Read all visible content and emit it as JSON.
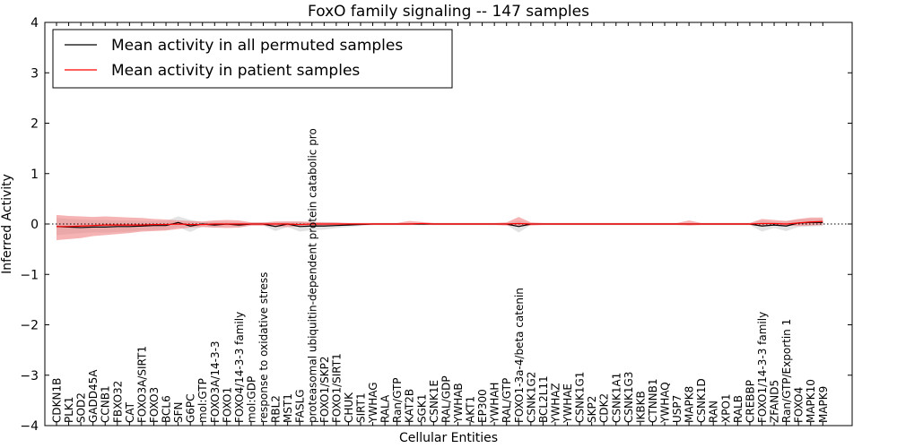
{
  "chart_data": {
    "type": "line",
    "title": "FoxO family signaling -- 147 samples",
    "xlabel": "Cellular Entities",
    "ylabel": "Inferred Activity",
    "ylim": [
      -4,
      4
    ],
    "yticks": [
      -4,
      -3,
      -2,
      -1,
      0,
      1,
      2,
      3,
      4
    ],
    "grid": false,
    "legend_position": "top-left",
    "reference_line": 0,
    "categories": [
      "CDKN1B",
      "PLK1",
      "SOD2",
      "GADD45A",
      "CCNB1",
      "FBXO32",
      "CAT",
      "FOXO3A/SIRT1",
      "FOXO3",
      "BCL6",
      "SFN",
      "G6PC",
      "mol:GTP",
      "FOXO3A/14-3-3",
      "FOXO1",
      "FOXO4/14-3-3 family",
      "mol:GDP",
      "response to oxidative stress",
      "RBL2",
      "MST1",
      "FASLG",
      "proteasomal ubiquitin-dependent protein catabolic pro",
      "FOXO1/SKP2",
      "FOXO1/SIRT1",
      "CHUK",
      "SIRT1",
      "YWHAG",
      "RALA",
      "Ran/GTP",
      "KAT2B",
      "SGK1",
      "CSNK1E",
      "RAL/GDP",
      "YWHAB",
      "AKT1",
      "EP300",
      "YWHAH",
      "RAL/GTP",
      "FOXO1-3a-4/beta catenin",
      "CSNK1G2",
      "BCL2L11",
      "YWHAZ",
      "YWHAE",
      "CSNK1G1",
      "SKP2",
      "CDK2",
      "CSNK1A1",
      "CSNK1G3",
      "IKBKB",
      "CTNNB1",
      "YWHAQ",
      "USP7",
      "MAPK8",
      "CSNK1D",
      "RAN",
      "XPO1",
      "RALB",
      "CREBBP",
      "FOXO1/14-3-3 family",
      "ZFAND5",
      "Ran/GTP/Exportin 1",
      "FOXO4",
      "MAPK10",
      "MAPK9"
    ],
    "series": [
      {
        "name": "Mean activity in all permuted samples",
        "color": "#000000",
        "band_color": "#cccccc",
        "values": [
          -0.05,
          -0.06,
          -0.07,
          -0.06,
          -0.06,
          -0.05,
          -0.05,
          -0.04,
          -0.03,
          -0.03,
          0.03,
          -0.04,
          0.0,
          -0.02,
          0.0,
          -0.02,
          0.0,
          0.0,
          -0.05,
          0.0,
          -0.05,
          -0.04,
          -0.04,
          -0.03,
          -0.02,
          -0.01,
          0.0,
          0.0,
          0.0,
          0.0,
          0.0,
          0.0,
          0.0,
          0.0,
          0.0,
          0.0,
          0.0,
          0.0,
          -0.05,
          0.0,
          0.0,
          0.0,
          0.0,
          0.0,
          0.0,
          0.0,
          0.0,
          0.0,
          0.0,
          0.0,
          0.0,
          0.0,
          0.0,
          0.0,
          0.0,
          0.0,
          0.0,
          0.0,
          -0.04,
          -0.02,
          -0.04,
          0.02,
          0.03,
          0.03
        ],
        "band_low": [
          -0.22,
          -0.2,
          -0.18,
          -0.17,
          -0.17,
          -0.16,
          -0.15,
          -0.13,
          -0.12,
          -0.12,
          -0.06,
          -0.16,
          -0.05,
          -0.07,
          -0.04,
          -0.06,
          -0.03,
          -0.03,
          -0.14,
          -0.06,
          -0.15,
          -0.12,
          -0.11,
          -0.08,
          -0.06,
          -0.04,
          -0.02,
          -0.02,
          -0.02,
          -0.02,
          -0.02,
          -0.02,
          -0.02,
          -0.02,
          -0.02,
          -0.02,
          -0.02,
          -0.02,
          -0.17,
          -0.02,
          -0.02,
          -0.02,
          -0.02,
          -0.02,
          -0.02,
          -0.02,
          -0.02,
          -0.02,
          -0.02,
          -0.02,
          -0.02,
          -0.02,
          -0.02,
          -0.02,
          -0.02,
          -0.02,
          -0.02,
          -0.02,
          -0.15,
          -0.08,
          -0.14,
          -0.06,
          -0.05,
          -0.04
        ],
        "band_high": [
          0.12,
          0.1,
          0.09,
          0.08,
          0.08,
          0.07,
          0.07,
          0.06,
          0.06,
          0.06,
          0.15,
          0.08,
          0.04,
          0.04,
          0.04,
          0.03,
          0.03,
          0.03,
          0.04,
          0.05,
          0.05,
          0.04,
          0.04,
          0.03,
          0.02,
          0.02,
          0.02,
          0.02,
          0.02,
          0.02,
          0.02,
          0.02,
          0.02,
          0.02,
          0.02,
          0.02,
          0.02,
          0.02,
          0.06,
          0.02,
          0.02,
          0.02,
          0.02,
          0.02,
          0.02,
          0.02,
          0.02,
          0.02,
          0.02,
          0.02,
          0.02,
          0.02,
          0.02,
          0.02,
          0.02,
          0.02,
          0.02,
          0.02,
          0.07,
          0.04,
          0.06,
          0.09,
          0.1,
          0.1
        ]
      },
      {
        "name": "Mean activity in patient samples",
        "color": "#ff0000",
        "band_color": "#f08080",
        "values": [
          -0.05,
          -0.05,
          -0.04,
          -0.03,
          -0.02,
          -0.02,
          -0.02,
          -0.02,
          -0.01,
          -0.01,
          0.0,
          -0.01,
          -0.01,
          0.0,
          0.0,
          0.0,
          0.0,
          0.0,
          0.0,
          0.0,
          -0.01,
          0.0,
          0.0,
          0.0,
          0.0,
          0.0,
          0.0,
          0.0,
          0.0,
          0.0,
          0.01,
          0.0,
          0.0,
          0.0,
          0.0,
          0.0,
          0.0,
          0.0,
          0.01,
          0.0,
          0.0,
          0.0,
          0.0,
          0.0,
          0.0,
          0.0,
          0.0,
          0.0,
          0.0,
          0.0,
          0.0,
          0.0,
          0.0,
          0.0,
          0.0,
          0.0,
          0.0,
          0.0,
          0.01,
          0.01,
          0.0,
          0.02,
          0.04,
          0.05
        ],
        "band_low": [
          -0.32,
          -0.3,
          -0.28,
          -0.24,
          -0.22,
          -0.2,
          -0.18,
          -0.15,
          -0.14,
          -0.13,
          -0.1,
          -0.07,
          -0.06,
          -0.07,
          -0.08,
          -0.07,
          -0.03,
          -0.03,
          -0.06,
          -0.06,
          -0.05,
          -0.04,
          -0.03,
          -0.03,
          -0.02,
          -0.02,
          -0.02,
          -0.02,
          -0.02,
          -0.02,
          -0.02,
          -0.02,
          -0.02,
          -0.02,
          -0.02,
          -0.02,
          -0.02,
          -0.03,
          -0.05,
          -0.03,
          -0.02,
          -0.02,
          -0.02,
          -0.02,
          -0.02,
          -0.02,
          -0.02,
          -0.02,
          -0.02,
          -0.02,
          -0.02,
          -0.02,
          -0.03,
          -0.02,
          -0.02,
          -0.02,
          -0.02,
          -0.02,
          -0.04,
          -0.03,
          -0.03,
          -0.04,
          -0.03,
          -0.02
        ],
        "band_high": [
          0.18,
          0.16,
          0.15,
          0.14,
          0.15,
          0.14,
          0.13,
          0.12,
          0.1,
          0.09,
          0.07,
          0.06,
          0.05,
          0.07,
          0.08,
          0.07,
          0.03,
          0.03,
          0.05,
          0.05,
          0.05,
          0.04,
          0.03,
          0.03,
          0.02,
          0.02,
          0.02,
          0.02,
          0.02,
          0.06,
          0.04,
          0.02,
          0.02,
          0.02,
          0.02,
          0.02,
          0.02,
          0.03,
          0.14,
          0.03,
          0.02,
          0.02,
          0.02,
          0.02,
          0.02,
          0.02,
          0.02,
          0.02,
          0.02,
          0.02,
          0.02,
          0.02,
          0.07,
          0.02,
          0.02,
          0.02,
          0.02,
          0.02,
          0.1,
          0.08,
          0.06,
          0.1,
          0.13,
          0.13
        ]
      }
    ]
  }
}
